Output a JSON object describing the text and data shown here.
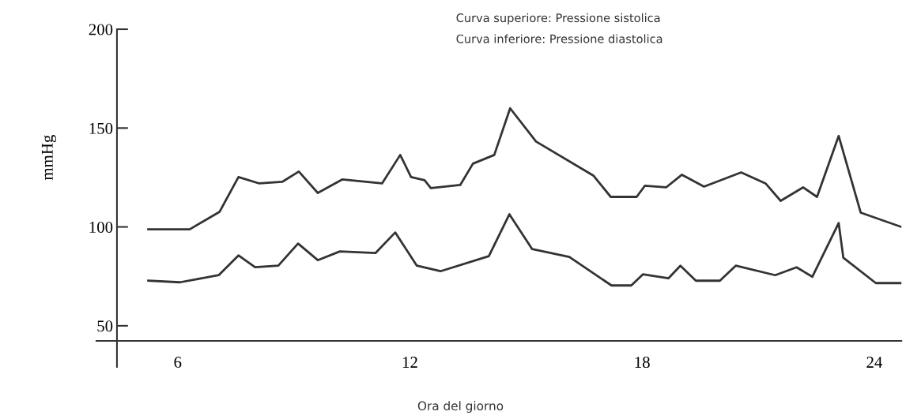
{
  "chart_data": {
    "type": "line",
    "xlabel": "Ora del giorno",
    "ylabel": "mmHg",
    "annotations": [
      "Curva superiore: Pressione sistolica",
      "Curva inferiore: Pressione diastolica"
    ],
    "xlim": [
      3.9,
      24.7
    ],
    "ylim": [
      29.2,
      200
    ],
    "xticks": [
      6,
      12,
      18,
      24
    ],
    "yticks": [
      50,
      100,
      150,
      200
    ],
    "grid": false,
    "legend": false,
    "marker": "none",
    "line_style": "solid",
    "series": [
      {
        "color": "#333333",
        "x": [
          5.24,
          6.31,
          7.08,
          7.57,
          8.11,
          8.7,
          9.13,
          9.62,
          10.25,
          11.28,
          11.75,
          12.03,
          12.38,
          12.54,
          13.3,
          13.63,
          14.18,
          14.59,
          15.26,
          16.74,
          17.19,
          17.86,
          18.07,
          18.62,
          19.03,
          19.6,
          20.56,
          21.19,
          21.58,
          22.16,
          22.52,
          23.08,
          23.65,
          24.7
        ],
        "values": [
          98.8,
          98.8,
          107.6,
          125.2,
          122,
          122.8,
          128,
          117.2,
          124,
          122,
          136.4,
          125.2,
          123.6,
          119.6,
          121.2,
          132,
          136.4,
          160,
          143.2,
          126,
          115.2,
          115.2,
          120.8,
          120,
          126.4,
          120.4,
          127.6,
          122,
          113.2,
          120,
          115.2,
          146,
          107.2,
          100
        ]
      },
      {
        "color": "#333333",
        "x": [
          5.24,
          6.06,
          7.06,
          7.57,
          8.0,
          8.6,
          9.11,
          9.62,
          10.19,
          11.11,
          11.62,
          12.18,
          12.79,
          14.04,
          14.57,
          15.16,
          16.12,
          17.21,
          17.72,
          18.02,
          18.68,
          18.99,
          19.39,
          20.01,
          20.42,
          21.44,
          21.99,
          22.4,
          23.08,
          23.2,
          24.04,
          24.7
        ],
        "values": [
          72.8,
          72,
          75.6,
          85.6,
          79.6,
          80.4,
          91.6,
          83.2,
          87.6,
          86.8,
          97.2,
          80.4,
          77.6,
          85.2,
          106.4,
          88.8,
          84.8,
          70.4,
          70.4,
          76,
          74,
          80.4,
          72.8,
          72.8,
          80.4,
          75.6,
          79.6,
          74.8,
          102,
          84.4,
          71.6,
          71.6
        ]
      }
    ]
  }
}
